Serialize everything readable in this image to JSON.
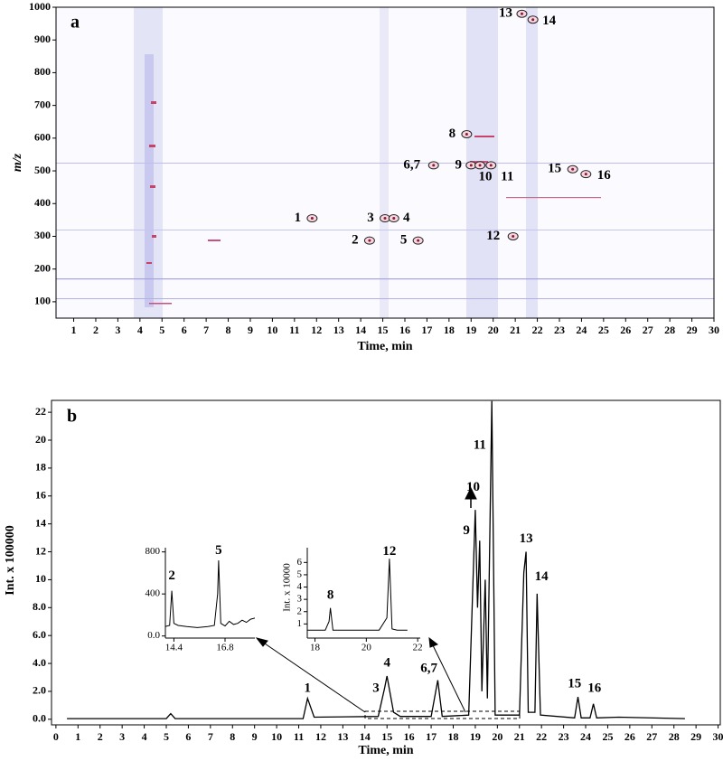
{
  "chart_data": [
    {
      "type": "scatter",
      "panel_label": "a",
      "x_label": "Time, min",
      "y_label": "m/z",
      "xlim": [
        0.2,
        30
      ],
      "ylim": [
        50,
        1000
      ],
      "xticks": [
        1,
        2,
        3,
        4,
        5,
        6,
        7,
        8,
        9,
        10,
        11,
        12,
        13,
        14,
        15,
        16,
        17,
        18,
        19,
        20,
        21,
        22,
        23,
        24,
        25,
        26,
        27,
        28,
        29,
        30
      ],
      "yticks": [
        100,
        200,
        300,
        400,
        500,
        600,
        700,
        800,
        900,
        1000
      ],
      "color": "#8b1a3a",
      "labels": [
        "1",
        "2",
        "3",
        "4",
        "5",
        "6,7",
        "8",
        "9",
        "10",
        "11",
        "12",
        "13",
        "14",
        "15",
        "16"
      ],
      "x": [
        11.8,
        14.4,
        15.1,
        15.5,
        16.6,
        17.3,
        18.8,
        19.0,
        19.4,
        19.9,
        20.9,
        21.3,
        21.8,
        23.6,
        24.2
      ],
      "values": [
        355,
        287,
        355,
        355,
        287,
        517,
        612,
        517,
        517,
        517,
        300,
        980,
        962,
        505,
        490
      ]
    },
    {
      "type": "line",
      "panel_label": "b",
      "x_label": "Time, min",
      "y_label": "Int. x 100000",
      "xlim": [
        -0.2,
        30.1
      ],
      "ylim": [
        -0.4,
        22.85
      ],
      "xticks": [
        0,
        1,
        2,
        3,
        4,
        5,
        6,
        7,
        8,
        9,
        10,
        11,
        12,
        13,
        14,
        15,
        16,
        17,
        18,
        19,
        20,
        21,
        22,
        23,
        24,
        25,
        26,
        27,
        28,
        29,
        30
      ],
      "yticks": [
        {
          "value": 0,
          "label": "0.0"
        },
        {
          "value": 2,
          "label": "2.0"
        },
        {
          "value": 4,
          "label": "4.0"
        },
        {
          "value": 6,
          "label": "6.0"
        },
        {
          "value": 8,
          "label": "8.0"
        },
        10,
        12,
        14,
        16,
        18,
        20,
        22
      ],
      "color": "#000000",
      "x": [
        0.5,
        5.0,
        5.2,
        5.4,
        11.2,
        11.4,
        11.7,
        14.6,
        14.9,
        15.0,
        15.3,
        15.6,
        17.0,
        17.3,
        17.5,
        18.7,
        19.0,
        19.1,
        19.2,
        19.3,
        19.45,
        19.55,
        19.75,
        19.9,
        21.0,
        21.2,
        21.3,
        21.4,
        21.7,
        21.8,
        21.95,
        23.5,
        23.65,
        23.8,
        24.2,
        24.35,
        24.5,
        25.5,
        28.5
      ],
      "values": [
        0.05,
        0.05,
        0.4,
        0.05,
        0.05,
        1.5,
        0.15,
        0.2,
        2.3,
        3.1,
        0.5,
        0.2,
        0.2,
        2.8,
        0.2,
        0.3,
        15.0,
        8.0,
        12.8,
        2.0,
        10.0,
        1.5,
        22.8,
        0.3,
        0.3,
        10.5,
        12.0,
        0.5,
        0.5,
        9.0,
        0.3,
        0.1,
        1.6,
        0.1,
        0.1,
        1.1,
        0.1,
        0.15,
        0.05
      ],
      "annotations": [
        {
          "text": "1",
          "x": 11.4,
          "y": 2.2
        },
        {
          "text": "3",
          "x": 14.5,
          "y": 2.2
        },
        {
          "text": "4",
          "x": 15.0,
          "y": 4.0
        },
        {
          "text": "6,7",
          "x": 16.9,
          "y": 3.6
        },
        {
          "text": "9",
          "x": 18.6,
          "y": 13.5
        },
        {
          "text": "10",
          "x": 18.9,
          "y": 16.6
        },
        {
          "text": "11",
          "x": 19.2,
          "y": 19.6
        },
        {
          "text": "13",
          "x": 21.3,
          "y": 12.9
        },
        {
          "text": "14",
          "x": 22.0,
          "y": 10.2
        },
        {
          "text": "15",
          "x": 23.5,
          "y": 2.5
        },
        {
          "text": "16",
          "x": 24.4,
          "y": 2.2
        }
      ]
    },
    {
      "type": "line",
      "xlim": [
        14.0,
        18.2
      ],
      "ylim": [
        -20,
        840
      ],
      "xticks": [
        14.4,
        16.8
      ],
      "yticks": [
        {
          "value": 0,
          "label": "0.0"
        },
        400,
        800
      ],
      "color": "#000000",
      "x": [
        14.0,
        14.2,
        14.3,
        14.4,
        14.6,
        15.0,
        15.5,
        16.0,
        16.3,
        16.45,
        16.5,
        16.6,
        16.8,
        17.0,
        17.2,
        17.4,
        17.6,
        17.8,
        18.0,
        18.2
      ],
      "values": [
        90,
        100,
        430,
        120,
        100,
        90,
        80,
        90,
        100,
        400,
        720,
        120,
        95,
        140,
        110,
        120,
        150,
        130,
        160,
        170
      ],
      "annotations": [
        {
          "text": "2",
          "x": 14.3,
          "y": 570
        },
        {
          "text": "5",
          "x": 16.5,
          "y": 810
        }
      ]
    },
    {
      "type": "line",
      "y_label": "Int. x 10000",
      "xlim": [
        17.7,
        22.1
      ],
      "ylim": [
        -0.15,
        7.2
      ],
      "xticks": [
        18,
        20,
        22
      ],
      "yticks": [
        1,
        2,
        3,
        4,
        5,
        6
      ],
      "color": "#000000",
      "x": [
        17.7,
        18.4,
        18.55,
        18.6,
        18.7,
        19.5,
        20.5,
        20.8,
        20.9,
        21.0,
        21.2,
        21.6
      ],
      "values": [
        0.5,
        0.5,
        1.2,
        2.3,
        0.5,
        0.5,
        0.5,
        1.5,
        6.3,
        0.6,
        0.5,
        0.5
      ],
      "annotations": [
        {
          "text": "8",
          "x": 18.6,
          "y": 3.3
        },
        {
          "text": "12",
          "x": 20.9,
          "y": 6.85
        }
      ]
    }
  ]
}
